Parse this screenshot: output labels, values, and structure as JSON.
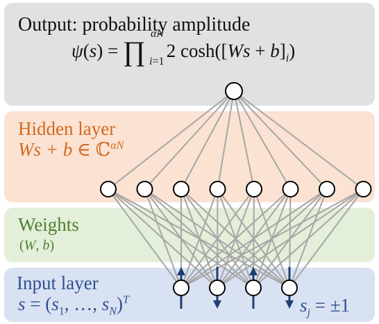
{
  "output": {
    "title": "Output: probability amplitude",
    "formula": "ψ(s) = ∏_{i=1}^{αN} 2 cosh([Ws + b]_i)"
  },
  "hidden": {
    "title": "Hidden layer",
    "formula": "Ws + b ∈ ℂ^{αN}"
  },
  "weights": {
    "title": "Weights",
    "params": "(W, b)"
  },
  "input": {
    "title": "Input layer",
    "formula": "s = (s_1, …, s_N)^T",
    "spin_label": "s_j = ±1",
    "spins": [
      "up",
      "down",
      "up",
      "down"
    ]
  },
  "network": {
    "output_nodes": 1,
    "hidden_nodes": 8,
    "input_nodes": 4
  },
  "colors": {
    "output_band": "#e1e1e1",
    "hidden_band": "#fbe2d2",
    "weights_band": "#e3efd9",
    "input_band": "#d9e2f2",
    "hidden_text": "#d2691e",
    "weights_text": "#4f7f32",
    "input_text": "#2f4f8f",
    "edge": "#a6a6a6",
    "arrow": "#1f3f73"
  }
}
